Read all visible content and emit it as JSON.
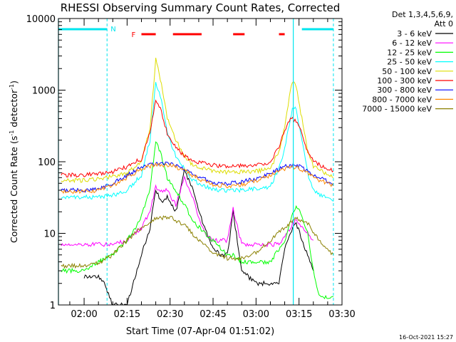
{
  "title": "RHESSI Observing Summary Count Rates, Corrected",
  "footer_date": "16-Oct-2021 15:27",
  "chart_data": {
    "type": "line",
    "title": "RHESSI Observing Summary Count Rates, Corrected",
    "xlabel": "Start Time (07-Apr-04 01:51:02)",
    "ylabel": "Corrected Count Rate (s⁻¹ detector⁻¹)",
    "ylabel_parts": [
      "Corrected Count Rate (s",
      "-1",
      " detector",
      "-1",
      ")"
    ],
    "y_scale": "log",
    "ylim": [
      1,
      10000
    ],
    "xlim": [
      "01:51:02",
      "03:30:00"
    ],
    "x_ticks": [
      "02:00",
      "02:15",
      "02:30",
      "02:45",
      "03:00",
      "03:15",
      "03:30"
    ],
    "y_ticks": [
      "1",
      "10",
      "100",
      "1000",
      "10000"
    ],
    "grid": false,
    "legend_placement": "right",
    "legend_header": [
      "Det 1,3,4,5,6,9,",
      "Att 0"
    ],
    "markers": {
      "N_label": "N",
      "F_label": "F",
      "N_bars": [
        [
          "01:51:02",
          "02:08:00"
        ],
        [
          "03:16:00",
          "03:27:00"
        ]
      ],
      "F_bars": [
        [
          "02:20:00",
          "02:25:00"
        ],
        [
          "02:31:00",
          "02:41:00"
        ],
        [
          "02:52:00",
          "02:56:00"
        ],
        [
          "03:08:00",
          "03:10:00"
        ]
      ],
      "verticals_solid": [
        "01:51:02",
        "03:13:00"
      ],
      "verticals_dashed": [
        "02:08:00",
        "03:27:00"
      ]
    },
    "series": [
      {
        "name": "3 - 6 keV",
        "color": "#000000",
        "x": [
          "02:00",
          "02:05",
          "02:07",
          "02:10",
          "02:15",
          "02:20",
          "02:23",
          "02:25",
          "02:27",
          "02:29",
          "02:32",
          "02:35",
          "02:38",
          "02:42",
          "02:45",
          "02:48",
          "02:50",
          "02:52",
          "02:55",
          "03:00",
          "03:05",
          "03:08",
          "03:10",
          "03:12",
          "03:14",
          "03:16",
          "03:18",
          "03:20"
        ],
        "values": [
          2.5,
          2.5,
          2,
          1,
          1,
          5,
          12,
          40,
          28,
          32,
          20,
          75,
          40,
          12,
          6,
          5,
          5,
          20,
          3,
          2,
          2,
          2,
          6,
          10,
          14,
          8,
          5,
          3
        ]
      },
      {
        "name": "6 - 12 keV",
        "color": "#ff00ff",
        "x": [
          "01:52",
          "02:00",
          "02:05",
          "02:10",
          "02:15",
          "02:20",
          "02:23",
          "02:25",
          "02:27",
          "02:29",
          "02:32",
          "02:35",
          "02:38",
          "02:42",
          "02:45",
          "02:48",
          "02:50",
          "02:52",
          "02:55",
          "03:00",
          "03:05",
          "03:08",
          "03:10",
          "03:12",
          "03:14",
          "03:16",
          "03:18",
          "03:20"
        ],
        "values": [
          7,
          7,
          7,
          7,
          8,
          12,
          20,
          45,
          38,
          40,
          25,
          60,
          30,
          10,
          8,
          8,
          8,
          22,
          7,
          7,
          7,
          7,
          9,
          12,
          16,
          12,
          10,
          8
        ]
      },
      {
        "name": "12 - 25 keV",
        "color": "#00ff00",
        "x": [
          "01:52",
          "02:00",
          "02:05",
          "02:10",
          "02:15",
          "02:18",
          "02:20",
          "02:23",
          "02:25",
          "02:27",
          "02:29",
          "02:32",
          "02:35",
          "02:38",
          "02:42",
          "02:45",
          "02:48",
          "02:50",
          "02:52",
          "02:55",
          "03:00",
          "03:05",
          "03:08",
          "03:10",
          "03:12",
          "03:14",
          "03:16",
          "03:18",
          "03:20",
          "03:22",
          "03:27"
        ],
        "values": [
          3,
          3,
          4,
          5,
          8,
          12,
          18,
          40,
          200,
          120,
          60,
          40,
          25,
          15,
          10,
          8,
          6,
          5,
          5,
          4,
          4,
          4,
          6,
          8,
          15,
          24,
          18,
          10,
          3,
          1.3,
          1.3
        ]
      },
      {
        "name": "25 - 50 keV",
        "color": "#00ffff",
        "x": [
          "01:52",
          "02:00",
          "02:05",
          "02:10",
          "02:15",
          "02:20",
          "02:23",
          "02:25",
          "02:27",
          "02:29",
          "02:32",
          "02:35",
          "02:38",
          "02:42",
          "02:45",
          "02:48",
          "02:50",
          "02:55",
          "03:00",
          "03:05",
          "03:08",
          "03:10",
          "03:12",
          "03:13",
          "03:14",
          "03:16",
          "03:18",
          "03:20",
          "03:25",
          "03:27"
        ],
        "values": [
          32,
          32,
          32,
          34,
          40,
          65,
          200,
          1300,
          700,
          250,
          120,
          80,
          55,
          45,
          42,
          40,
          40,
          40,
          42,
          45,
          80,
          150,
          400,
          600,
          550,
          200,
          70,
          40,
          30,
          28
        ]
      },
      {
        "name": "50 - 100 keV",
        "color": "#dddd00",
        "x": [
          "01:52",
          "02:00",
          "02:05",
          "02:10",
          "02:15",
          "02:20",
          "02:23",
          "02:25",
          "02:27",
          "02:29",
          "02:32",
          "02:35",
          "02:38",
          "02:42",
          "02:45",
          "02:48",
          "02:50",
          "02:55",
          "03:00",
          "03:05",
          "03:08",
          "03:10",
          "03:12",
          "03:13",
          "03:14",
          "03:16",
          "03:18",
          "03:20",
          "03:25",
          "03:27"
        ],
        "values": [
          55,
          55,
          58,
          62,
          70,
          100,
          300,
          2700,
          1200,
          400,
          200,
          120,
          90,
          80,
          75,
          72,
          72,
          72,
          74,
          80,
          140,
          300,
          1000,
          1300,
          1100,
          400,
          140,
          85,
          65,
          60
        ]
      },
      {
        "name": "100 - 300 keV",
        "color": "#ff0000",
        "x": [
          "01:52",
          "02:00",
          "02:05",
          "02:10",
          "02:15",
          "02:20",
          "02:23",
          "02:25",
          "02:27",
          "02:29",
          "02:32",
          "02:35",
          "02:38",
          "02:42",
          "02:45",
          "02:48",
          "02:50",
          "02:55",
          "03:00",
          "03:05",
          "03:08",
          "03:10",
          "03:12",
          "03:14",
          "03:16",
          "03:18",
          "03:20",
          "03:25",
          "03:27"
        ],
        "values": [
          65,
          65,
          68,
          72,
          85,
          110,
          250,
          750,
          500,
          250,
          160,
          120,
          100,
          95,
          90,
          88,
          88,
          88,
          90,
          100,
          160,
          280,
          400,
          380,
          250,
          140,
          100,
          80,
          75
        ]
      },
      {
        "name": "300 - 800 keV",
        "color": "#0000ff",
        "x": [
          "01:52",
          "02:00",
          "02:05",
          "02:10",
          "02:15",
          "02:20",
          "02:25",
          "02:30",
          "02:35",
          "02:40",
          "02:45",
          "02:50",
          "02:55",
          "03:00",
          "03:05",
          "03:10",
          "03:14",
          "03:18",
          "03:22",
          "03:27"
        ],
        "values": [
          40,
          40,
          42,
          50,
          65,
          85,
          95,
          95,
          80,
          62,
          52,
          50,
          52,
          58,
          70,
          85,
          90,
          75,
          60,
          50
        ]
      },
      {
        "name": "800 - 7000 keV",
        "color": "#ff8800",
        "x": [
          "01:52",
          "02:00",
          "02:05",
          "02:10",
          "02:15",
          "02:20",
          "02:25",
          "02:30",
          "02:35",
          "02:40",
          "02:45",
          "02:50",
          "02:55",
          "03:00",
          "03:05",
          "03:10",
          "03:14",
          "03:18",
          "03:22",
          "03:27"
        ],
        "values": [
          38,
          38,
          40,
          47,
          60,
          80,
          90,
          90,
          75,
          58,
          48,
          46,
          48,
          54,
          65,
          80,
          85,
          70,
          56,
          46
        ]
      },
      {
        "name": "7000 - 15000 keV",
        "color": "#8b8000",
        "x": [
          "01:52",
          "02:00",
          "02:05",
          "02:10",
          "02:15",
          "02:20",
          "02:25",
          "02:30",
          "02:35",
          "02:40",
          "02:45",
          "02:50",
          "02:55",
          "03:00",
          "03:05",
          "03:10",
          "03:14",
          "03:18",
          "03:22",
          "03:27"
        ],
        "values": [
          3.5,
          3.5,
          3.8,
          5,
          8,
          12,
          16,
          17,
          13,
          8,
          5.5,
          4.5,
          4.5,
          5.5,
          8,
          12,
          16,
          14,
          8,
          5
        ]
      }
    ]
  }
}
